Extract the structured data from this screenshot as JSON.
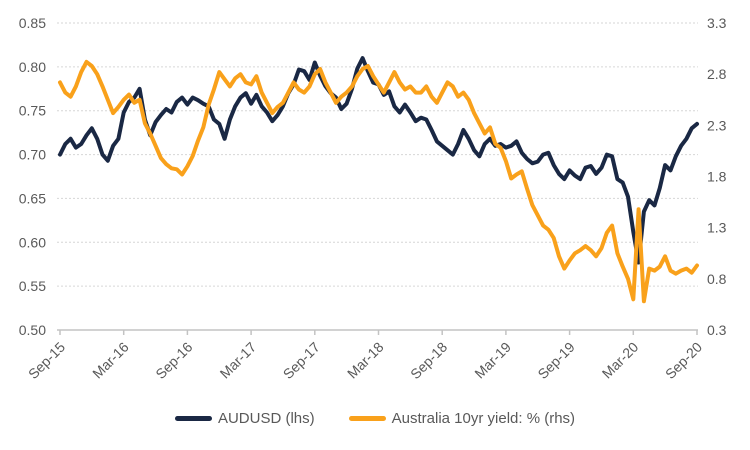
{
  "chart_data": {
    "type": "line",
    "title": "",
    "x_tick_labels": [
      "Sep-15",
      "Mar-16",
      "Sep-16",
      "Mar-17",
      "Sep-17",
      "Mar-18",
      "Sep-18",
      "Mar-19",
      "Sep-19",
      "Mar-20",
      "Sep-20"
    ],
    "x_range": "Sep-2015 to Sep-2020",
    "samples_per_month": 2,
    "left_axis": {
      "min": 0.5,
      "max": 0.85,
      "tick_step": 0.05,
      "tick_labels": [
        "0.85",
        "0.80",
        "0.75",
        "0.70",
        "0.65",
        "0.60",
        "0.55",
        "0.50"
      ]
    },
    "right_axis": {
      "min": 0.3,
      "max": 3.3,
      "tick_step": 0.5,
      "tick_labels": [
        "3.3",
        "2.8",
        "2.3",
        "1.8",
        "1.3",
        "0.8",
        "0.3"
      ]
    },
    "grid": {
      "horizontal": true,
      "style": "dotted",
      "color": "#d6d6d6"
    },
    "legend_position": "bottom",
    "series": [
      {
        "name": "AUDUSD (lhs)",
        "axis": "left",
        "color": "#1a2844",
        "values": [
          0.7,
          0.712,
          0.718,
          0.708,
          0.712,
          0.722,
          0.73,
          0.718,
          0.7,
          0.693,
          0.71,
          0.718,
          0.748,
          0.76,
          0.765,
          0.775,
          0.74,
          0.722,
          0.737,
          0.745,
          0.752,
          0.748,
          0.76,
          0.765,
          0.757,
          0.765,
          0.762,
          0.758,
          0.755,
          0.74,
          0.735,
          0.718,
          0.74,
          0.755,
          0.765,
          0.77,
          0.758,
          0.768,
          0.755,
          0.748,
          0.738,
          0.745,
          0.755,
          0.77,
          0.78,
          0.797,
          0.795,
          0.785,
          0.805,
          0.79,
          0.778,
          0.77,
          0.765,
          0.752,
          0.758,
          0.775,
          0.798,
          0.81,
          0.795,
          0.782,
          0.78,
          0.768,
          0.772,
          0.755,
          0.748,
          0.757,
          0.748,
          0.738,
          0.742,
          0.74,
          0.728,
          0.715,
          0.71,
          0.705,
          0.7,
          0.712,
          0.728,
          0.718,
          0.705,
          0.698,
          0.712,
          0.718,
          0.71,
          0.712,
          0.708,
          0.71,
          0.715,
          0.702,
          0.695,
          0.69,
          0.692,
          0.7,
          0.702,
          0.688,
          0.678,
          0.672,
          0.682,
          0.676,
          0.672,
          0.685,
          0.687,
          0.678,
          0.685,
          0.7,
          0.698,
          0.672,
          0.668,
          0.652,
          0.612,
          0.577,
          0.635,
          0.648,
          0.642,
          0.662,
          0.688,
          0.682,
          0.698,
          0.71,
          0.718,
          0.73,
          0.735
        ]
      },
      {
        "name": "Australia 10yr yield: % (rhs)",
        "axis": "right",
        "color": "#f9a11b",
        "values": [
          2.72,
          2.62,
          2.58,
          2.68,
          2.82,
          2.92,
          2.88,
          2.8,
          2.68,
          2.55,
          2.42,
          2.48,
          2.55,
          2.6,
          2.52,
          2.55,
          2.32,
          2.22,
          2.1,
          1.98,
          1.92,
          1.88,
          1.87,
          1.82,
          1.9,
          2.0,
          2.15,
          2.28,
          2.5,
          2.65,
          2.82,
          2.75,
          2.68,
          2.76,
          2.8,
          2.72,
          2.7,
          2.78,
          2.62,
          2.52,
          2.42,
          2.48,
          2.52,
          2.62,
          2.72,
          2.65,
          2.62,
          2.68,
          2.8,
          2.85,
          2.72,
          2.62,
          2.52,
          2.58,
          2.62,
          2.68,
          2.78,
          2.85,
          2.88,
          2.78,
          2.7,
          2.62,
          2.72,
          2.82,
          2.72,
          2.65,
          2.68,
          2.62,
          2.62,
          2.68,
          2.58,
          2.52,
          2.62,
          2.72,
          2.68,
          2.58,
          2.62,
          2.55,
          2.42,
          2.32,
          2.22,
          2.28,
          2.12,
          2.08,
          1.95,
          1.78,
          1.82,
          1.85,
          1.68,
          1.52,
          1.42,
          1.32,
          1.28,
          1.2,
          1.02,
          0.9,
          0.98,
          1.05,
          1.08,
          1.12,
          1.08,
          1.02,
          1.1,
          1.25,
          1.32,
          1.05,
          0.92,
          0.8,
          0.6,
          1.48,
          0.58,
          0.9,
          0.88,
          0.92,
          1.02,
          0.88,
          0.85,
          0.88,
          0.9,
          0.86,
          0.93
        ]
      }
    ]
  },
  "legend": {
    "items": [
      {
        "label": "AUDUSD (lhs)",
        "color": "#1a2844"
      },
      {
        "label": "Australia 10yr yield: % (rhs)",
        "color": "#f9a11b"
      }
    ]
  },
  "styles": {
    "axis_line_color": "#c3c3c3",
    "tick_label_color": "#595959",
    "background": "#ffffff"
  }
}
